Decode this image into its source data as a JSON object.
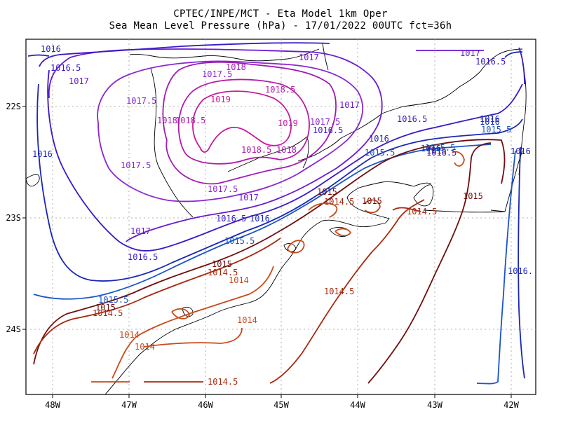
{
  "title_line1": "CPTEC/INPE/MCT -  Eta Model 1km Oper",
  "title_line2": "Sea Mean Level Pressure (hPa) - 17/01/2022 00UTC fct=36h",
  "x_ticks": [
    "48W",
    "47W",
    "46W",
    "45W",
    "44W",
    "43W",
    "42W"
  ],
  "y_ticks": [
    "22S",
    "23S",
    "24S"
  ],
  "contour_colors": {
    "1014": "#c84a1a",
    "1014.5": "#a8280e",
    "1015": "#6e0e0e",
    "1015.5": "#1a55c8",
    "1016": "#1a28b4",
    "1016.5": "#3a1ac8",
    "1017": "#6a1ad2",
    "1017.5": "#8a28d2",
    "1018": "#a01ab4",
    "1018.5": "#b41aa8",
    "1019": "#c81a9a"
  },
  "contour_labels": [
    {
      "text": "1016",
      "level": "1016"
    },
    {
      "text": "1016.5",
      "level": "1016.5"
    },
    {
      "text": "1017",
      "level": "1017"
    },
    {
      "text": "1017.5",
      "level": "1017.5"
    },
    {
      "text": "1018",
      "level": "1018"
    },
    {
      "text": "1017.5",
      "level": "1017.5"
    },
    {
      "text": "1018.5",
      "level": "1018.5"
    },
    {
      "text": "1019",
      "level": "1019"
    },
    {
      "text": "1018",
      "level": "1018"
    },
    {
      "text": "1018.5",
      "level": "1018.5"
    },
    {
      "text": "1019",
      "level": "1019"
    },
    {
      "text": "1018.5",
      "level": "1018.5"
    },
    {
      "text": "1018",
      "level": "1018"
    },
    {
      "text": "1017.5",
      "level": "1017.5"
    },
    {
      "text": "1017",
      "level": "1017"
    },
    {
      "text": "1016.5",
      "level": "1016.5"
    },
    {
      "text": "1017",
      "level": "1017"
    },
    {
      "text": "1017",
      "level": "1017"
    },
    {
      "text": "1016.5",
      "level": "1016.5"
    },
    {
      "text": "1016",
      "level": "1016"
    },
    {
      "text": "1017.5",
      "level": "1017.5"
    },
    {
      "text": "1017.5",
      "level": "1017.5"
    },
    {
      "text": "1017",
      "level": "1017"
    },
    {
      "text": "1016",
      "level": "1016"
    },
    {
      "text": "1016.5",
      "level": "1016.5"
    },
    {
      "text": "1016",
      "level": "1016"
    },
    {
      "text": "1016.5",
      "level": "1016.5"
    },
    {
      "text": "1015.5",
      "level": "1015.5"
    },
    {
      "text": "1016.5",
      "level": "1016.5"
    },
    {
      "text": "1016",
      "level": "1016"
    },
    {
      "text": "1015.5",
      "level": "1015.5"
    },
    {
      "text": "1015",
      "level": "1015"
    },
    {
      "text": "1014.5",
      "level": "1014.5"
    },
    {
      "text": "1014",
      "level": "1014"
    },
    {
      "text": "1015.5",
      "level": "1015.5"
    },
    {
      "text": "1015",
      "level": "1015"
    },
    {
      "text": "1014.5",
      "level": "1014.5"
    },
    {
      "text": "1014",
      "level": "1014"
    },
    {
      "text": "1014",
      "level": "1014"
    },
    {
      "text": "1014",
      "level": "1014"
    },
    {
      "text": "1015",
      "level": "1015"
    },
    {
      "text": "1014.5",
      "level": "1014.5"
    },
    {
      "text": "1014.5",
      "level": "1014.5"
    },
    {
      "text": "1015",
      "level": "1015"
    },
    {
      "text": "1015",
      "level": "1015"
    },
    {
      "text": "1014.5",
      "level": "1014.5"
    },
    {
      "text": "1014.5",
      "level": "1014.5"
    },
    {
      "text": "1015",
      "level": "1015"
    },
    {
      "text": "1016",
      "level": "1016"
    },
    {
      "text": "1015.5",
      "level": "1015.5"
    },
    {
      "text": "1016",
      "level": "1016"
    },
    {
      "text": "1016.",
      "level": "1016"
    },
    {
      "text": "1017",
      "level": "1017"
    },
    {
      "text": "1016.5",
      "level": "1016.5"
    },
    {
      "text": "1015.5",
      "level": "1015.5"
    },
    {
      "text": "1016",
      "level": "1016"
    }
  ]
}
